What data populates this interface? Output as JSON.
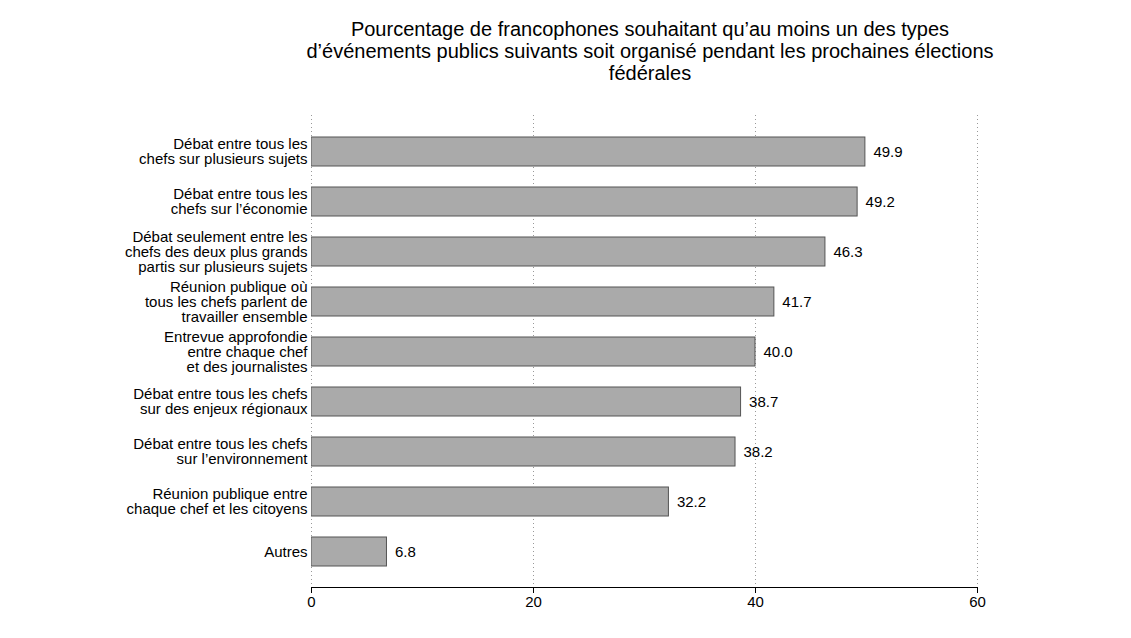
{
  "chart_data": {
    "type": "bar",
    "orientation": "horizontal",
    "title": "Pourcentage de francophones souhaitant qu’au moins un des types d’événements publics suivants soit organisé pendant les prochaines élections fédérales",
    "categories": [
      "Débat entre tous les\nchefs sur plusieurs sujets",
      "Débat entre tous les\nchefs sur l’économie",
      "Débat seulement entre les\nchefs des deux plus grands\npartis sur plusieurs sujets",
      "Réunion publique où\ntous les chefs parlent de\ntravailler ensemble",
      "Entrevue approfondie\nentre chaque chef\net des journalistes",
      "Débat entre tous les chefs\nsur des enjeux régionaux",
      "Débat entre tous les chefs\nsur l’environnement",
      "Réunion publique entre\nchaque chef et les citoyens",
      "Autres"
    ],
    "values": [
      49.9,
      49.2,
      46.3,
      41.7,
      40.0,
      38.7,
      38.2,
      32.2,
      6.8
    ],
    "value_labels": [
      "49.9",
      "49.2",
      "46.3",
      "41.7",
      "40.0",
      "38.7",
      "38.2",
      "32.2",
      "6.8"
    ],
    "color": "#aaaaaa",
    "xlim": [
      0,
      60
    ],
    "xticks": [
      0,
      20,
      40,
      60
    ],
    "grid": true,
    "data_labels": true
  }
}
